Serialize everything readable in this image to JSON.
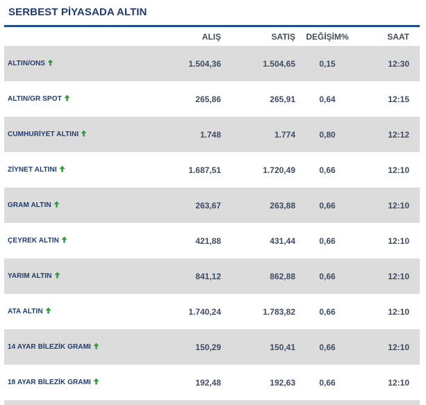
{
  "title": "SERBEST PİYASADA ALTIN",
  "colors": {
    "title": "#1f3b6e",
    "rule": "#1f4c8c",
    "stripe": "#dcdcdc",
    "up_arrow": "#2e9e3a"
  },
  "columns": {
    "name": "",
    "alis": "ALIŞ",
    "satis": "SATIŞ",
    "degisim": "DEĞİŞİM%",
    "saat": "SAAT"
  },
  "rows": [
    {
      "name": "ALTIN/ONS",
      "trend_icon": "up-arrow-icon",
      "alis": "1.504,36",
      "satis": "1.504,65",
      "degisim": "0,15",
      "saat": "12:30"
    },
    {
      "name": "ALTIN/GR SPOT",
      "trend_icon": "up-arrow-icon",
      "alis": "265,86",
      "satis": "265,91",
      "degisim": "0,64",
      "saat": "12:15"
    },
    {
      "name": "CUMHURİYET ALTINI",
      "trend_icon": "up-arrow-icon",
      "alis": "1.748",
      "satis": "1.774",
      "degisim": "0,80",
      "saat": "12:12"
    },
    {
      "name": "ZİYNET ALTINI",
      "trend_icon": "up-arrow-icon",
      "alis": "1.687,51",
      "satis": "1.720,49",
      "degisim": "0,66",
      "saat": "12:10"
    },
    {
      "name": "GRAM ALTIN",
      "trend_icon": "up-arrow-icon",
      "alis": "263,67",
      "satis": "263,88",
      "degisim": "0,66",
      "saat": "12:10"
    },
    {
      "name": "ÇEYREK ALTIN",
      "trend_icon": "up-arrow-icon",
      "alis": "421,88",
      "satis": "431,44",
      "degisim": "0,66",
      "saat": "12:10"
    },
    {
      "name": "YARIM ALTIN",
      "trend_icon": "up-arrow-icon",
      "alis": "841,12",
      "satis": "862,88",
      "degisim": "0,66",
      "saat": "12:10"
    },
    {
      "name": "ATA ALTIN",
      "trend_icon": "up-arrow-icon",
      "alis": "1.740,24",
      "satis": "1.783,82",
      "degisim": "0,66",
      "saat": "12:10"
    },
    {
      "name": "14 AYAR BİLEZİK GRAMI",
      "trend_icon": "up-arrow-icon",
      "alis": "150,29",
      "satis": "150,41",
      "degisim": "0,66",
      "saat": "12:10"
    },
    {
      "name": "18 AYAR BİLEZİK GRAMI",
      "trend_icon": "up-arrow-icon",
      "alis": "192,48",
      "satis": "192,63",
      "degisim": "0,66",
      "saat": "12:10"
    }
  ]
}
